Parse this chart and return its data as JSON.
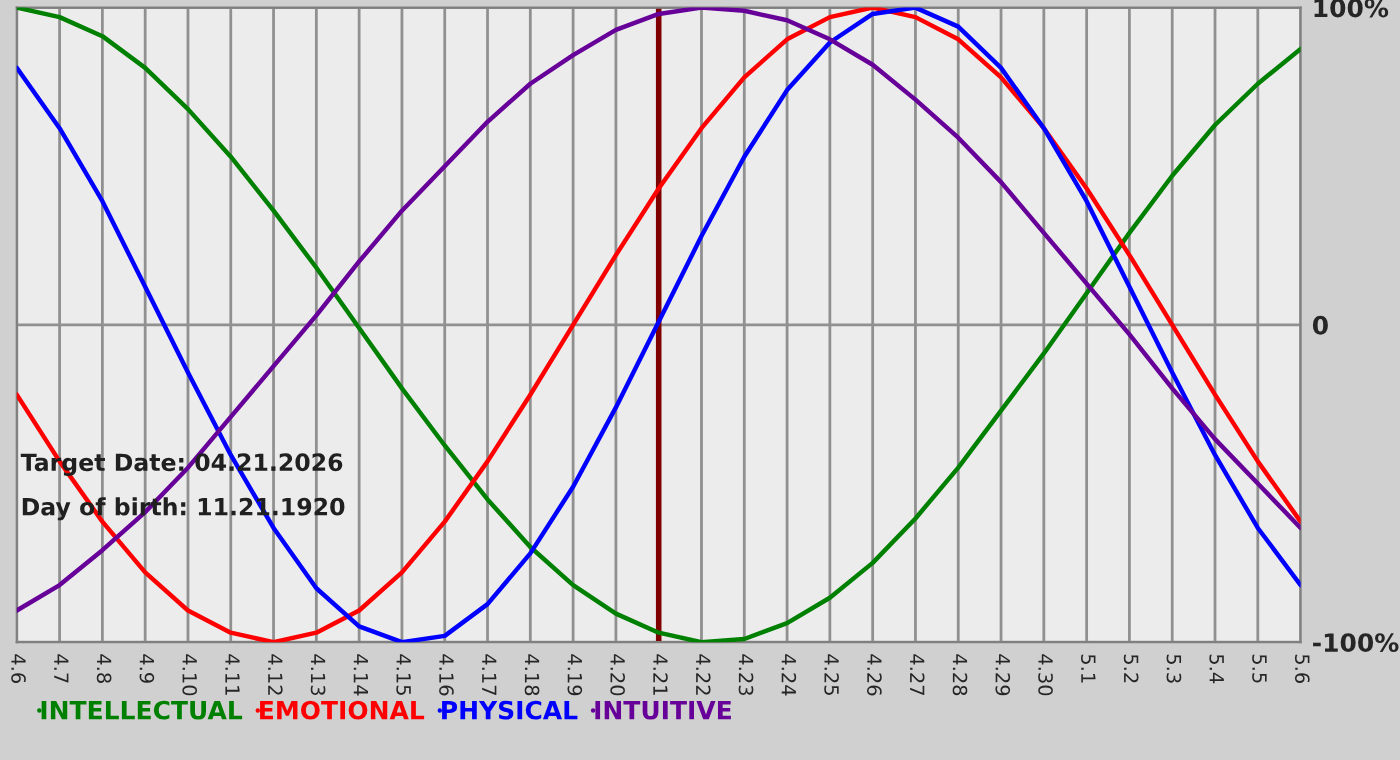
{
  "chart_data": {
    "type": "line",
    "categories": [
      "4.6",
      "4.7",
      "4.8",
      "4.9",
      "4.10",
      "4.11",
      "4.12",
      "4.13",
      "4.14",
      "4.15",
      "4.16",
      "4.17",
      "4.18",
      "4.19",
      "4.20",
      "4.21",
      "4.22",
      "4.23",
      "4.24",
      "4.25",
      "4.26",
      "4.27",
      "4.28",
      "4.29",
      "4.30",
      "5.1",
      "5.2",
      "5.3",
      "5.4",
      "5.5",
      "5.6"
    ],
    "series": [
      {
        "name": "INTELLECTUAL",
        "color": "#008000",
        "values": [
          100,
          97,
          91,
          81,
          68,
          53,
          36,
          18,
          -1,
          -20,
          -38,
          -55,
          -70,
          -82,
          -91,
          -97,
          -100,
          -99,
          -94,
          -86,
          -75,
          -61,
          -45,
          -27,
          -9,
          10,
          29,
          47,
          63,
          76,
          87
        ]
      },
      {
        "name": "EMOTIONAL",
        "color": "#ff0000",
        "values": [
          -22,
          -43,
          -62,
          -78,
          -90,
          -97,
          -100,
          -97,
          -90,
          -78,
          -62,
          -43,
          -22,
          0,
          22,
          43,
          62,
          78,
          90,
          97,
          100,
          97,
          90,
          78,
          62,
          43,
          22,
          0,
          -22,
          -43,
          -62
        ]
      },
      {
        "name": "PHYSICAL",
        "color": "#0000ff",
        "values": [
          81,
          62,
          39,
          12,
          -15,
          -41,
          -64,
          -83,
          -95,
          -100,
          -98,
          -88,
          -72,
          -51,
          -26,
          1,
          28,
          53,
          74,
          89,
          98,
          100,
          94,
          81,
          62,
          39,
          12,
          -15,
          -41,
          -64,
          -82
        ]
      },
      {
        "name": "INTUITIVE",
        "color": "#660099",
        "values": [
          -90,
          -82,
          -71,
          -59,
          -45,
          -29,
          -13,
          3,
          20,
          36,
          50,
          64,
          76,
          85,
          93,
          98,
          100,
          99,
          96,
          90,
          82,
          71,
          59,
          45,
          29,
          13,
          -3,
          -20,
          -36,
          -50,
          -64
        ]
      }
    ],
    "ylim": [
      -100,
      100
    ],
    "yticks": [
      {
        "value": -100,
        "label": "-100%"
      },
      0,
      {
        "value": 100,
        "label": "100%"
      }
    ],
    "ref_lines": [
      {
        "axis": "x",
        "value": "4.21",
        "color": "#800000"
      }
    ],
    "annotations": [
      "Target Date: 04.21.2026",
      "Day of birth: 11.21.1920"
    ],
    "grid": true,
    "legend": "bottom",
    "marker": "none",
    "line_style": "solid"
  }
}
